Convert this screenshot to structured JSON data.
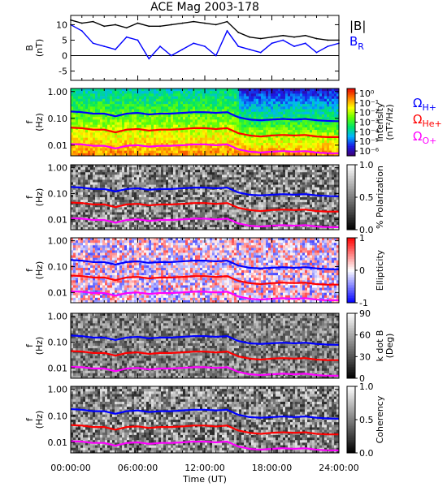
{
  "chart_data": {
    "title": "ACE Mag 2003-178",
    "xlabel": "Time (UT)",
    "x_ticks": [
      "00:00:00",
      "06:00:00",
      "12:00:00",
      "18:00:00",
      "24:00:00"
    ],
    "xlim_hours": [
      0,
      24
    ],
    "panels": [
      {
        "id": "b-field",
        "type": "line",
        "ylabel": "B",
        "yunit": "(nT)",
        "ylim": [
          -8,
          13
        ],
        "y_ticks": [
          "10",
          "5",
          "0",
          "-5"
        ],
        "series": [
          {
            "name": "|B|",
            "color": "#000000",
            "x": [
              0,
              1,
              2,
              3,
              4,
              5,
              6,
              7,
              8,
              9,
              10,
              11,
              12,
              13,
              14,
              15,
              16,
              17,
              18,
              19,
              20,
              21,
              22,
              23,
              24
            ],
            "values": [
              11.5,
              10.5,
              11,
              9.5,
              10,
              9,
              10.5,
              9.5,
              9.5,
              10,
              10.5,
              11,
              10.5,
              10,
              11,
              7.5,
              6,
              5.5,
              6,
              6.5,
              6,
              6.5,
              5.5,
              5,
              5
            ]
          },
          {
            "name": "BR",
            "color": "#0000ff",
            "x": [
              0,
              1,
              2,
              3,
              4,
              5,
              6,
              7,
              8,
              9,
              10,
              11,
              12,
              13,
              14,
              15,
              16,
              17,
              18,
              19,
              20,
              21,
              22,
              23,
              24
            ],
            "values": [
              10,
              8,
              4,
              3,
              2,
              6,
              5,
              -1,
              3,
              0,
              2,
              4,
              3,
              0,
              8,
              3,
              2,
              1,
              4,
              5,
              3,
              4,
              1,
              3,
              4
            ]
          }
        ]
      },
      {
        "id": "intensity",
        "type": "heatmap",
        "ylabel": "f",
        "yunit": "(Hz)",
        "colorbar": {
          "label": "Intensity",
          "unit": "(nT²/Hz)",
          "ticks": [
            "10⁰",
            "10⁻¹",
            "10⁻²",
            "10⁻³",
            "10⁻⁴",
            "10⁻⁵",
            "10⁻⁶"
          ],
          "range": [
            -6.5,
            0.5
          ]
        }
      },
      {
        "id": "polarization",
        "type": "heatmap",
        "ylabel": "f",
        "yunit": "(Hz)",
        "colorbar": {
          "label": "% Polarization",
          "ticks": [
            "1.0",
            "0.5",
            "0.0"
          ],
          "range": [
            0,
            1
          ]
        }
      },
      {
        "id": "ellipticity",
        "type": "heatmap",
        "ylabel": "f",
        "yunit": "(Hz)",
        "colorbar": {
          "label": "Ellipticity",
          "ticks": [
            "1",
            "0",
            "-1"
          ],
          "range": [
            -1,
            1
          ]
        }
      },
      {
        "id": "kdotb",
        "type": "heatmap",
        "ylabel": "f",
        "yunit": "(Hz)",
        "colorbar": {
          "label": "k dot B",
          "unit": "(Deg)",
          "ticks": [
            "90",
            "60",
            "30",
            "0"
          ],
          "range": [
            0,
            90
          ]
        }
      },
      {
        "id": "coherency",
        "type": "heatmap",
        "ylabel": "f",
        "yunit": "(Hz)",
        "colorbar": {
          "label": "Coherency",
          "ticks": [
            "1.0",
            "0.5",
            "0.0"
          ],
          "range": [
            0,
            1
          ]
        }
      }
    ],
    "f_ticks": [
      "1.00",
      "0.10",
      "0.01"
    ],
    "f_range_hz": [
      0.004,
      1.3
    ],
    "gyro_lines": {
      "x": [
        0,
        1,
        2,
        3,
        4,
        5,
        6,
        7,
        8,
        9,
        10,
        11,
        12,
        13,
        14,
        15,
        16,
        17,
        18,
        19,
        20,
        21,
        22,
        23,
        24
      ],
      "series": [
        {
          "name": "ΩH+",
          "color": "#0000ff",
          "values": [
            0.18,
            0.17,
            0.15,
            0.15,
            0.12,
            0.15,
            0.16,
            0.14,
            0.15,
            0.15,
            0.16,
            0.17,
            0.17,
            0.16,
            0.17,
            0.11,
            0.09,
            0.085,
            0.09,
            0.095,
            0.09,
            0.095,
            0.085,
            0.08,
            0.078
          ]
        },
        {
          "name": "ΩHe+",
          "color": "#ff0000",
          "values": [
            0.045,
            0.043,
            0.038,
            0.038,
            0.03,
            0.038,
            0.04,
            0.035,
            0.038,
            0.038,
            0.04,
            0.043,
            0.043,
            0.04,
            0.043,
            0.028,
            0.023,
            0.021,
            0.023,
            0.024,
            0.023,
            0.024,
            0.021,
            0.02,
            0.02
          ]
        },
        {
          "name": "ΩO+",
          "color": "#ff00ff",
          "values": [
            0.011,
            0.0107,
            0.0095,
            0.0095,
            0.0075,
            0.0095,
            0.01,
            0.0088,
            0.0095,
            0.0095,
            0.01,
            0.0107,
            0.0107,
            0.01,
            0.0107,
            0.007,
            0.0057,
            0.0053,
            0.0057,
            0.006,
            0.0057,
            0.006,
            0.0053,
            0.005,
            0.005
          ]
        }
      ]
    }
  },
  "legend_b": {
    "abs": "|B|",
    "r": "B",
    "r_sub": "R"
  },
  "legend_gyro": {
    "sym": "Ω",
    "h_sub": "H+",
    "he_sub": "He+",
    "o_sub": "O+"
  },
  "colors": {
    "black": "#000000",
    "blue": "#0000ff",
    "red": "#ff0000",
    "magenta": "#ff00ff"
  }
}
